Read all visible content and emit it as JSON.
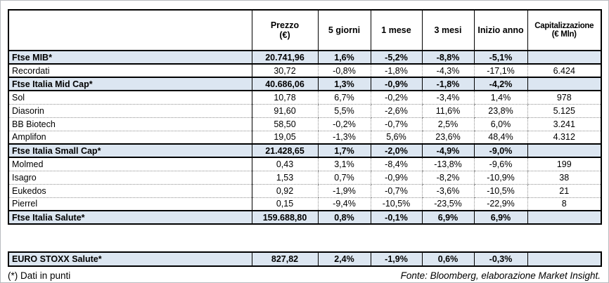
{
  "colors": {
    "index_row_bg": "#dce6f1",
    "table_border": "#000000",
    "dotted_divider": "#8f8f8f"
  },
  "main_table": {
    "header": {
      "name": "",
      "cols": [
        {
          "label": "Prezzo",
          "sub": "(€)"
        },
        {
          "label": "5 giorni",
          "sub": ""
        },
        {
          "label": "1 mese",
          "sub": ""
        },
        {
          "label": "3 mesi",
          "sub": ""
        },
        {
          "label": "Inizio anno",
          "sub": ""
        },
        {
          "label": "Capitalizzazione",
          "sub": "(€ Mln)"
        }
      ]
    },
    "rows": [
      {
        "type": "index",
        "name": "Ftse MIB*",
        "prezzo": "20.741,96",
        "g5": "1,6%",
        "m1": "-5,2%",
        "m3": "-8,8%",
        "inizio_anno": "-5,1%",
        "cap": ""
      },
      {
        "type": "stock",
        "name": "Recordati",
        "prezzo": "30,72",
        "g5": "-0,8%",
        "m1": "-1,8%",
        "m3": "-4,3%",
        "inizio_anno": "-17,1%",
        "cap": "6.424"
      },
      {
        "type": "index",
        "name": "Ftse Italia Mid Cap*",
        "prezzo": "40.686,06",
        "g5": "1,3%",
        "m1": "-0,9%",
        "m3": "-1,8%",
        "inizio_anno": "-4,2%",
        "cap": ""
      },
      {
        "type": "stock",
        "name": "Sol",
        "prezzo": "10,78",
        "g5": "6,7%",
        "m1": "-0,2%",
        "m3": "-3,4%",
        "inizio_anno": "1,4%",
        "cap": "978"
      },
      {
        "type": "stock",
        "name": "Diasorin",
        "prezzo": "91,60",
        "g5": "5,5%",
        "m1": "-2,6%",
        "m3": "11,6%",
        "inizio_anno": "23,8%",
        "cap": "5.125"
      },
      {
        "type": "stock",
        "name": "BB Biotech",
        "prezzo": "58,50",
        "g5": "-0,2%",
        "m1": "-0,7%",
        "m3": "2,5%",
        "inizio_anno": "6,0%",
        "cap": "3.241"
      },
      {
        "type": "stock",
        "name": "Amplifon",
        "prezzo": "19,05",
        "g5": "-1,3%",
        "m1": "5,6%",
        "m3": "23,6%",
        "inizio_anno": "48,4%",
        "cap": "4.312"
      },
      {
        "type": "index",
        "name": "Ftse Italia Small Cap*",
        "prezzo": "21.428,65",
        "g5": "1,7%",
        "m1": "-2,0%",
        "m3": "-4,9%",
        "inizio_anno": "-9,0%",
        "cap": ""
      },
      {
        "type": "stock",
        "name": "Molmed",
        "prezzo": "0,43",
        "g5": "3,1%",
        "m1": "-8,4%",
        "m3": "-13,8%",
        "inizio_anno": "-9,6%",
        "cap": "199"
      },
      {
        "type": "stock",
        "name": "Isagro",
        "prezzo": "1,53",
        "g5": "0,7%",
        "m1": "-0,9%",
        "m3": "-8,2%",
        "inizio_anno": "-10,9%",
        "cap": "38"
      },
      {
        "type": "stock",
        "name": "Eukedos",
        "prezzo": "0,92",
        "g5": "-1,9%",
        "m1": "-0,7%",
        "m3": "-3,6%",
        "inizio_anno": "-10,5%",
        "cap": "21"
      },
      {
        "type": "stock",
        "name": "Pierrel",
        "prezzo": "0,15",
        "g5": "-9,4%",
        "m1": "-10,5%",
        "m3": "-23,5%",
        "inizio_anno": "-22,9%",
        "cap": "8"
      },
      {
        "type": "index",
        "name": "Ftse Italia Salute*",
        "prezzo": "159.688,80",
        "g5": "0,8%",
        "m1": "-0,1%",
        "m3": "6,9%",
        "inizio_anno": "6,9%",
        "cap": ""
      }
    ]
  },
  "euro_table": {
    "row": {
      "type": "index",
      "name": "EURO STOXX Salute*",
      "prezzo": "827,82",
      "g5": "2,4%",
      "m1": "-1,9%",
      "m3": "0,6%",
      "inizio_anno": "-0,3%",
      "cap": ""
    }
  },
  "footer": {
    "note": "(*) Dati in punti",
    "source": "Fonte: Bloomberg, elaborazione Market Insight."
  }
}
